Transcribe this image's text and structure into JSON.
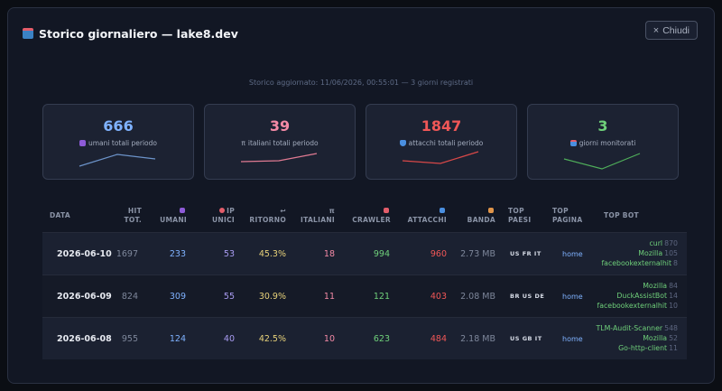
{
  "modal": {
    "title": "Storico giornaliero — lake8.dev",
    "close_label": "Chiudi",
    "subtitle": "Storico aggiornato: 11/06/2026, 00:55:01 — 3 giorni registrati"
  },
  "cards": [
    {
      "value": "666",
      "label": "umani totali periodo",
      "icon": "people-icon",
      "color": "#7fb2ff",
      "spark_color": "#6c93c9",
      "spark": [
        2,
        9,
        6
      ]
    },
    {
      "value": "39",
      "label": "italiani totali periodo",
      "icon": "pi-icon",
      "color": "#f48aa6",
      "spark_color": "#e07a92",
      "spark": [
        6,
        5.5,
        9
      ]
    },
    {
      "value": "1847",
      "label": "attacchi totali periodo",
      "icon": "shield-icon",
      "color": "#f05757",
      "spark_color": "#d84848",
      "spark": [
        6,
        4,
        10
      ]
    },
    {
      "value": "3",
      "label": "giorni monitorati",
      "icon": "calendar-icon",
      "color": "#6fd07a",
      "spark_color": "#4fae5a",
      "spark": [
        6,
        0,
        10
      ]
    }
  ],
  "table": {
    "headers": {
      "data": "DATA",
      "hit_1": "HIT",
      "hit_2": "TOT.",
      "umani": "UMANI",
      "ip_1": "IP",
      "ip_2": "UNICI",
      "ritorno": "RITORNO",
      "italiani": "ITALIANI",
      "crawler": "CRAWLER",
      "attacchi": "ATTACCHI",
      "banda": "BANDA",
      "paesi_1": "TOP",
      "paesi_2": "PAESI",
      "pagina_1": "TOP",
      "pagina_2": "PAGINA",
      "bot": "TOP BOT"
    },
    "rows": [
      {
        "date": "2026-06-10",
        "hit": "1697",
        "umani": "233",
        "ip": "53",
        "ritorno": "45.3%",
        "italiani": "18",
        "crawler": "994",
        "attacchi": "960",
        "banda": "2.73 MB",
        "paesi": "US FR IT",
        "pagina": "home",
        "bots": [
          {
            "name": "curl",
            "count": "870"
          },
          {
            "name": "Mozilla",
            "count": "105"
          },
          {
            "name": "facebookexternalhit",
            "count": "8"
          }
        ]
      },
      {
        "date": "2026-06-09",
        "hit": "824",
        "umani": "309",
        "ip": "55",
        "ritorno": "30.9%",
        "italiani": "11",
        "crawler": "121",
        "attacchi": "403",
        "banda": "2.08 MB",
        "paesi": "BR US DE",
        "pagina": "home",
        "bots": [
          {
            "name": "Mozilla",
            "count": "84"
          },
          {
            "name": "DuckAssistBot",
            "count": "14"
          },
          {
            "name": "facebookexternalhit",
            "count": "10"
          }
        ]
      },
      {
        "date": "2026-06-08",
        "hit": "955",
        "umani": "124",
        "ip": "40",
        "ritorno": "42.5%",
        "italiani": "10",
        "crawler": "623",
        "attacchi": "484",
        "banda": "2.18 MB",
        "paesi": "US GB IT",
        "pagina": "home",
        "bots": [
          {
            "name": "TLM-Audit-Scanner",
            "count": "548"
          },
          {
            "name": "Mozilla",
            "count": "52"
          },
          {
            "name": "Go-http-client",
            "count": "11"
          }
        ]
      }
    ]
  }
}
